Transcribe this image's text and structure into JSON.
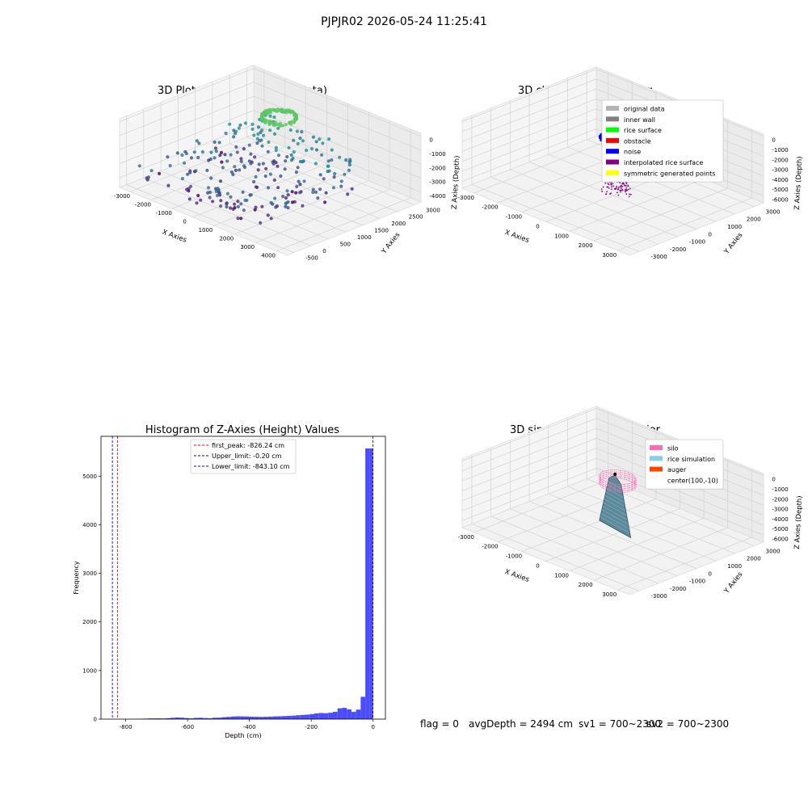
{
  "suptitle": "PJPJR02 2026-05-24 11:25:41",
  "status": {
    "flag": "flag = 0",
    "avg": "avgDepth = 2494 cm",
    "sv1": "sv1 = 700~2300",
    "sv2": "sv2 = 700~2300"
  },
  "chart_data": [
    {
      "type": "scatter",
      "title": "3D Plot of Silo Interior(row data)",
      "xlabel": "X Axies",
      "ylabel": "Y Axies",
      "zlabel": "Z Axies (Depth)",
      "xlim": [
        -3500,
        4500
      ],
      "ylim": [
        -700,
        3200
      ],
      "zlim": [
        -4700,
        200
      ],
      "xticks": [
        "-3000",
        "-2000",
        "-1000",
        "0",
        "1000",
        "2000",
        "3000",
        "4000"
      ],
      "yticks": [
        "-500",
        "0",
        "500",
        "1000",
        "1500",
        "2000",
        "2500",
        "3000"
      ],
      "zticks": [
        "0",
        "-1000",
        "-2000",
        "-3000",
        "-4000"
      ],
      "xtickvals": [
        -3000,
        -2000,
        -1000,
        0,
        1000,
        2000,
        3000,
        4000
      ],
      "ytickvals": [
        -500,
        0,
        500,
        1000,
        1500,
        2000,
        2500,
        3000
      ],
      "ztickvals": [
        0,
        -1000,
        -2000,
        -3000,
        -4000
      ],
      "colormap": "viridis",
      "grid": true
    },
    {
      "type": "scatter",
      "title": "3D classify of Silo Interior",
      "xlabel": "X Axies",
      "ylabel": "Y Axies",
      "zlabel": "Z Axies (Depth)",
      "xlim": [
        -3500,
        3500
      ],
      "ylim": [
        -3500,
        3500
      ],
      "zlim": [
        -6700,
        200
      ],
      "xticks": [
        "-3000",
        "-2000",
        "-1000",
        "0",
        "1000",
        "2000",
        "3000"
      ],
      "yticks": [
        "-3000",
        "-2000",
        "-1000",
        "0",
        "1000",
        "2000",
        "3000"
      ],
      "zticks": [
        "0",
        "-1000",
        "-2000",
        "-3000",
        "-4000",
        "-5000",
        "-6000"
      ],
      "xtickvals": [
        -3000,
        -2000,
        -1000,
        0,
        1000,
        2000,
        3000
      ],
      "ytickvals": [
        -3000,
        -2000,
        -1000,
        0,
        1000,
        2000,
        3000
      ],
      "ztickvals": [
        0,
        -1000,
        -2000,
        -3000,
        -4000,
        -5000,
        -6000
      ],
      "legend": [
        {
          "label": "original data",
          "color": "#b3b3b3"
        },
        {
          "label": "inner wall",
          "color": "#808080"
        },
        {
          "label": "rice surface",
          "color": "#00ff00"
        },
        {
          "label": "obstacle",
          "color": "#ff0000"
        },
        {
          "label": "noise",
          "color": "#0000ff"
        },
        {
          "label": "interpolated rice surface",
          "color": "#800080"
        },
        {
          "label": "symmetric generated points",
          "color": "#ffff00"
        }
      ],
      "legend_position": "top-right",
      "grid": true
    },
    {
      "type": "bar",
      "title": "Histogram of Z-Axies (Height) Values",
      "xlabel": "Depth (cm)",
      "ylabel": "Frequency",
      "xlim": [
        -880,
        40
      ],
      "ylim": [
        0,
        5820
      ],
      "xticks": [
        "-800",
        "-600",
        "-400",
        "-200",
        "0"
      ],
      "xtickvals": [
        -800,
        -600,
        -400,
        -200,
        0
      ],
      "yticks": [
        "0",
        "1000",
        "2000",
        "3000",
        "4000",
        "5000"
      ],
      "ytickvals": [
        0,
        1000,
        2000,
        3000,
        4000,
        5000
      ],
      "bar_color": "#4c4cff",
      "bin_edges": [
        -760,
        -745,
        -730,
        -715,
        -700,
        -685,
        -670,
        -655,
        -640,
        -625,
        -610,
        -595,
        -580,
        -565,
        -550,
        -535,
        -520,
        -505,
        -490,
        -475,
        -460,
        -445,
        -430,
        -415,
        -400,
        -385,
        -370,
        -355,
        -340,
        -325,
        -310,
        -295,
        -280,
        -265,
        -250,
        -235,
        -220,
        -205,
        -190,
        -175,
        -160,
        -145,
        -130,
        -115,
        -100,
        -85,
        -70,
        -55,
        -40,
        -25,
        -10,
        0
      ],
      "counts": [
        6,
        10,
        14,
        15,
        16,
        14,
        20,
        28,
        34,
        30,
        22,
        16,
        26,
        28,
        22,
        18,
        28,
        30,
        40,
        46,
        54,
        58,
        56,
        54,
        50,
        48,
        46,
        48,
        52,
        56,
        58,
        62,
        66,
        72,
        80,
        86,
        92,
        104,
        118,
        126,
        122,
        132,
        150,
        222,
        232,
        200,
        148,
        196,
        460,
        5570,
        5570
      ],
      "reference_lines": [
        {
          "label": "first_peak: -826.24 cm",
          "value": -826.24,
          "color": "#ff0000"
        },
        {
          "label": "Upper_limit: -0.20 cm",
          "value": -0.2,
          "color": "#00008b"
        },
        {
          "label": "Lower_limit: -843.10 cm",
          "value": -843.1,
          "color": "#0000ff"
        }
      ],
      "legend_position": "top-center",
      "grid": false
    },
    {
      "type": "area",
      "title": "3D simulation of Silo Interior",
      "xlabel": "X Axies",
      "ylabel": "Y Axies",
      "zlabel": "Z Axies (Depth)",
      "xlim": [
        -3500,
        3500
      ],
      "ylim": [
        -3500,
        3500
      ],
      "zlim": [
        -6700,
        200
      ],
      "xticks": [
        "-3000",
        "-2000",
        "-1000",
        "0",
        "1000",
        "2000",
        "3000"
      ],
      "yticks": [
        "-3000",
        "-2000",
        "-1000",
        "0",
        "1000",
        "2000",
        "3000"
      ],
      "zticks": [
        "0",
        "-1000",
        "-2000",
        "-3000",
        "-4000",
        "-5000",
        "-6000"
      ],
      "xtickvals": [
        -3000,
        -2000,
        -1000,
        0,
        1000,
        2000,
        3000
      ],
      "ytickvals": [
        -3000,
        -2000,
        -1000,
        0,
        1000,
        2000,
        3000
      ],
      "ztickvals": [
        0,
        -1000,
        -2000,
        -3000,
        -4000,
        -5000,
        -6000
      ],
      "legend": [
        {
          "label": "silo",
          "color": "#ff69b4"
        },
        {
          "label": "rice simulation",
          "color": "#87ceeb"
        },
        {
          "label": "auger",
          "color": "#ff4500"
        },
        {
          "label": "center(100,-10)",
          "color": ""
        }
      ],
      "legend_position": "top-right",
      "grid": true
    }
  ]
}
